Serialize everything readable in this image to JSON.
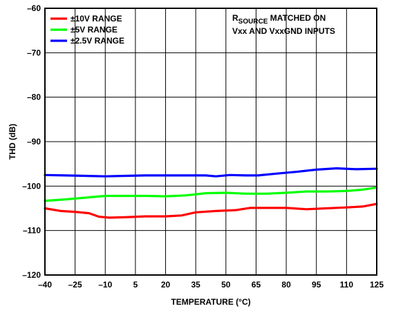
{
  "chart_data": {
    "type": "line",
    "title": "",
    "xlabel": "TEMPERATURE (°C)",
    "ylabel": "THD (dB)",
    "xlim": [
      -40,
      125
    ],
    "ylim": [
      -120,
      -60
    ],
    "x_ticks": [
      -40,
      -25,
      -10,
      5,
      20,
      35,
      50,
      65,
      80,
      95,
      110,
      125
    ],
    "y_ticks": [
      -60,
      -70,
      -80,
      -90,
      -100,
      -110,
      -120
    ],
    "x_tick_labels": [
      "–40",
      "–25",
      "–10",
      "5",
      "20",
      "35",
      "50",
      "65",
      "80",
      "95",
      "110",
      "125"
    ],
    "y_tick_labels": [
      "–60",
      "–70",
      "–80",
      "–90",
      "–100",
      "–110",
      "–120"
    ],
    "grid": true,
    "legend_position": "top-left",
    "annotation": {
      "line1_prefix": "R",
      "line1_subscript": "SOURCE",
      "line1_suffix": " MATCHED ON",
      "line2": "Vxx AND VxxGND INPUTS",
      "position": "top-right"
    },
    "series": [
      {
        "name": "±10V RANGE",
        "color": "#ff0000",
        "x": [
          -40,
          -32,
          -25,
          -18,
          -13,
          -8,
          0,
          10,
          20,
          28,
          35,
          45,
          55,
          62,
          70,
          80,
          90,
          100,
          110,
          118,
          125
        ],
        "y": [
          -105.0,
          -105.6,
          -105.8,
          -106.1,
          -106.9,
          -107.1,
          -107.0,
          -106.8,
          -106.8,
          -106.6,
          -105.9,
          -105.6,
          -105.4,
          -104.9,
          -104.9,
          -104.9,
          -105.2,
          -105.0,
          -104.8,
          -104.6,
          -104.0
        ]
      },
      {
        "name": "±5V RANGE",
        "color": "#00ff00",
        "x": [
          -40,
          -30,
          -20,
          -10,
          0,
          10,
          20,
          30,
          40,
          50,
          60,
          70,
          80,
          90,
          100,
          110,
          118,
          125
        ],
        "y": [
          -103.3,
          -103.0,
          -102.6,
          -102.2,
          -102.2,
          -102.2,
          -102.3,
          -102.1,
          -101.6,
          -101.5,
          -101.7,
          -101.7,
          -101.5,
          -101.2,
          -101.2,
          -101.1,
          -100.8,
          -100.3
        ]
      },
      {
        "name": "±2.5V RANGE",
        "color": "#0000ff",
        "x": [
          -40,
          -30,
          -20,
          -10,
          0,
          10,
          20,
          30,
          40,
          45,
          52,
          60,
          66,
          75,
          85,
          95,
          105,
          115,
          125
        ],
        "y": [
          -97.5,
          -97.6,
          -97.7,
          -97.8,
          -97.7,
          -97.6,
          -97.6,
          -97.6,
          -97.6,
          -97.8,
          -97.5,
          -97.6,
          -97.6,
          -97.2,
          -96.8,
          -96.3,
          -96.0,
          -96.2,
          -96.1
        ]
      }
    ]
  }
}
